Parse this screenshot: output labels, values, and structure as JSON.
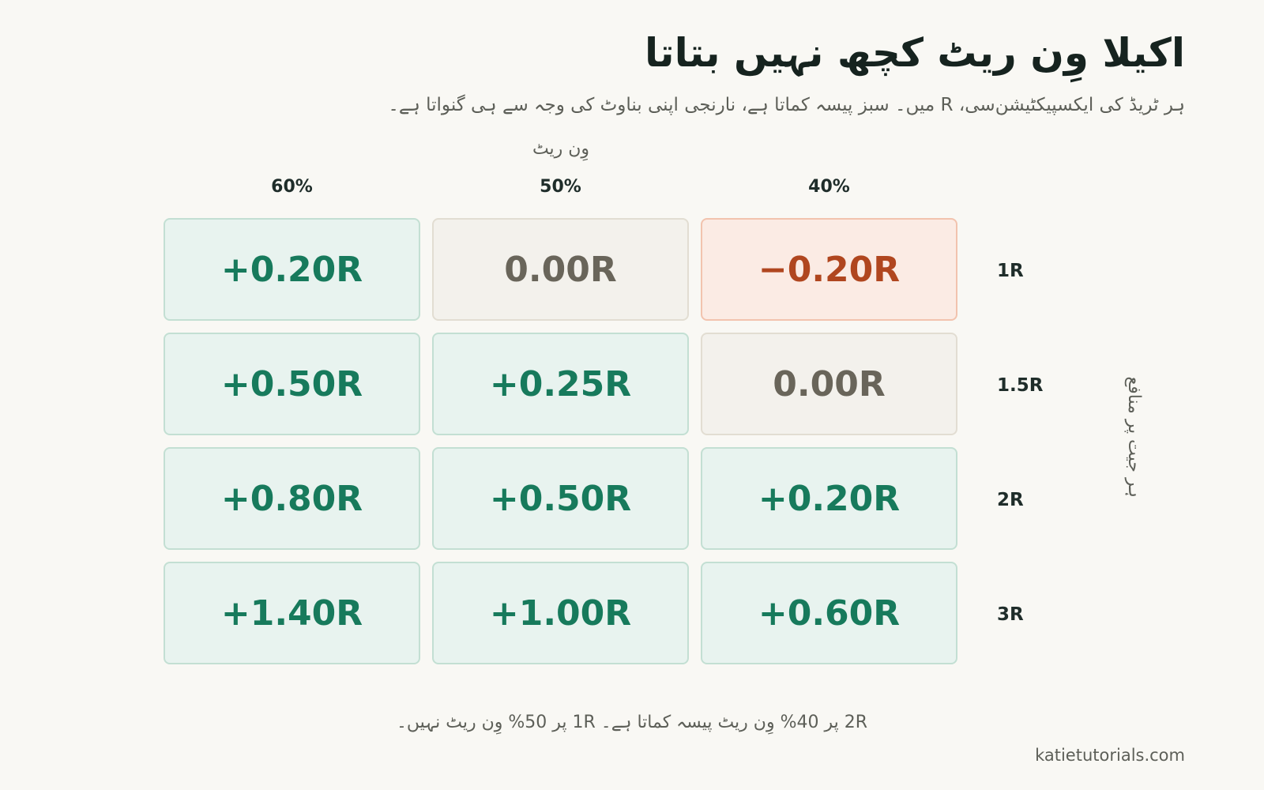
{
  "title": "اکیلا وِن ریٹ کچھ نہیں بتاتا",
  "subtitle": "ہر ٹریڈ کی ایکسپیکٹیشن‌سی، R میں۔ سبز پیسہ کماتا ہے، نارنجی اپنی بناوٹ کی وجہ سے ہی گنواتا ہے۔",
  "footnote": "2R پر 40% وِن ریٹ پیسہ کماتا ہے۔ 1R پر 50% وِن ریٹ نہیں۔",
  "brand": "katietutorials.com",
  "colors": {
    "positive": "#177a5c",
    "zero": "#69655a",
    "negative": "#b0461f"
  },
  "chart_data": {
    "type": "heatmap",
    "xlabel": "وِن ریٹ",
    "ylabel": "ہر جیت پر منافع",
    "columns": [
      "60%",
      "50%",
      "40%"
    ],
    "rows": [
      "1R",
      "1.5R",
      "2R",
      "3R"
    ],
    "values": [
      [
        0.2,
        0.0,
        -0.2
      ],
      [
        0.5,
        0.25,
        0.0
      ],
      [
        0.8,
        0.5,
        0.2
      ],
      [
        1.4,
        1.0,
        0.6
      ]
    ],
    "labels": [
      [
        "+0.20R",
        "0.00R",
        "−0.20R"
      ],
      [
        "+0.50R",
        "+0.25R",
        "0.00R"
      ],
      [
        "+0.80R",
        "+0.50R",
        "+0.20R"
      ],
      [
        "+1.40R",
        "+1.00R",
        "+0.60R"
      ]
    ]
  }
}
